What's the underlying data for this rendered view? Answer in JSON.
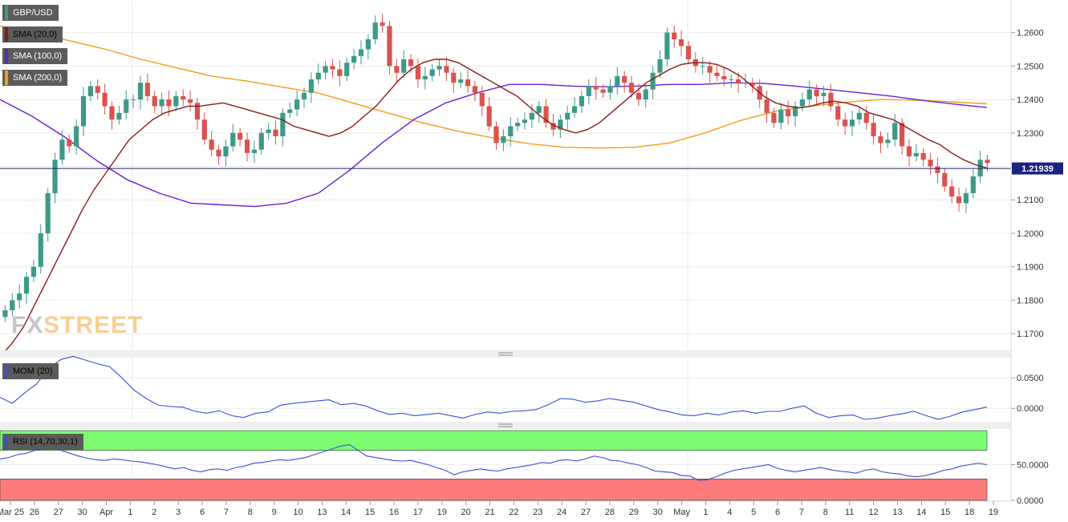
{
  "chart_data": [
    {
      "type": "candlestick",
      "symbol": "GBP/USD",
      "last_price": "1.21939",
      "ylim": [
        1.165,
        1.2695
      ],
      "y_ticks": [
        "1.2600",
        "1.2500",
        "1.2400",
        "1.2300",
        "1.2200",
        "1.2100",
        "1.2000",
        "1.1900",
        "1.1800",
        "1.1700"
      ],
      "indicators": [
        {
          "name": "SMA (20,0)",
          "color": "#8b1a1a"
        },
        {
          "name": "SMA (100,0)",
          "color": "#6a1fd0"
        },
        {
          "name": "SMA (200,0)",
          "color": "#f59a18"
        }
      ],
      "up_color": "#3d9a86",
      "down_color": "#d9534f",
      "x_ticks": [
        "Mar 25",
        "26",
        "27",
        "30",
        "Apr",
        "1",
        "2",
        "3",
        "6",
        "7",
        "8",
        "9",
        "10",
        "13",
        "14",
        "15",
        "16",
        "17",
        "19",
        "20",
        "21",
        "22",
        "23",
        "24",
        "27",
        "28",
        "29",
        "30",
        "May",
        "1",
        "4",
        "5",
        "6",
        "7",
        "8",
        "11",
        "12",
        "13",
        "14",
        "15",
        "18",
        "19"
      ],
      "close_path": [
        1.177,
        1.18,
        1.182,
        1.187,
        1.19,
        1.2,
        1.212,
        1.222,
        1.228,
        1.226,
        1.232,
        1.241,
        1.244,
        1.242,
        1.238,
        1.234,
        1.236,
        1.24,
        1.24,
        1.245,
        1.241,
        1.238,
        1.24,
        1.238,
        1.241,
        1.24,
        1.239,
        1.234,
        1.228,
        1.225,
        1.223,
        1.226,
        1.23,
        1.228,
        1.224,
        1.225,
        1.23,
        1.231,
        1.229,
        1.236,
        1.237,
        1.24,
        1.242,
        1.246,
        1.248,
        1.25,
        1.249,
        1.247,
        1.251,
        1.253,
        1.255,
        1.258,
        1.263,
        1.262,
        1.25,
        1.248,
        1.252,
        1.25,
        1.246,
        1.247,
        1.249,
        1.25,
        1.248,
        1.245,
        1.246,
        1.244,
        1.242,
        1.238,
        1.232,
        1.227,
        1.229,
        1.232,
        1.233,
        1.234,
        1.236,
        1.238,
        1.233,
        1.231,
        1.234,
        1.236,
        1.238,
        1.241,
        1.244,
        1.243,
        1.242,
        1.244,
        1.247,
        1.245,
        1.242,
        1.24,
        1.243,
        1.248,
        1.252,
        1.26,
        1.258,
        1.256,
        1.252,
        1.25,
        1.25,
        1.248,
        1.247,
        1.246,
        1.246,
        1.245,
        1.245,
        1.244,
        1.24,
        1.236,
        1.233,
        1.237,
        1.235,
        1.238,
        1.24,
        1.243,
        1.241,
        1.242,
        1.238,
        1.234,
        1.232,
        1.234,
        1.236,
        1.233,
        1.229,
        1.227,
        1.228,
        1.233,
        1.226,
        1.223,
        1.224,
        1.222,
        1.22,
        1.218,
        1.214,
        1.211,
        1.209,
        1.212,
        1.217,
        1.222,
        1.221
      ],
      "sma20": [
        1.163,
        1.167,
        1.172,
        1.179,
        1.186,
        1.193,
        1.2,
        1.207,
        1.213,
        1.218,
        1.223,
        1.228,
        1.231,
        1.234,
        1.236,
        1.237,
        1.238,
        1.238,
        1.2385,
        1.239,
        1.238,
        1.237,
        1.236,
        1.235,
        1.234,
        1.232,
        1.231,
        1.23,
        1.229,
        1.23,
        1.232,
        1.235,
        1.238,
        1.242,
        1.246,
        1.249,
        1.251,
        1.252,
        1.252,
        1.251,
        1.249,
        1.247,
        1.245,
        1.243,
        1.241,
        1.238,
        1.235,
        1.2325,
        1.231,
        1.23,
        1.231,
        1.233,
        1.236,
        1.239,
        1.242,
        1.245,
        1.247,
        1.249,
        1.2505,
        1.251,
        1.251,
        1.2505,
        1.249,
        1.247,
        1.244,
        1.241,
        1.239,
        1.238,
        1.2375,
        1.238,
        1.239,
        1.2395,
        1.239,
        1.238,
        1.236,
        1.235,
        1.234,
        1.232,
        1.23,
        1.228,
        1.2265,
        1.224,
        1.222,
        1.2205,
        1.2195
      ],
      "sma100": [
        1.24,
        1.235,
        1.229,
        1.222,
        1.216,
        1.212,
        1.209,
        1.2085,
        1.208,
        1.209,
        1.212,
        1.219,
        1.227,
        1.234,
        1.239,
        1.242,
        1.2445,
        1.2445,
        1.244,
        1.2438,
        1.244,
        1.2445,
        1.2445,
        1.245,
        1.2448,
        1.244,
        1.243,
        1.242,
        1.241,
        1.2397,
        1.2386,
        1.2376
      ],
      "sma200": [
        1.262,
        1.26,
        1.2575,
        1.255,
        1.252,
        1.2495,
        1.247,
        1.2455,
        1.2437,
        1.242,
        1.239,
        1.236,
        1.233,
        1.2305,
        1.2285,
        1.2268,
        1.2257,
        1.2255,
        1.2257,
        1.227,
        1.23,
        1.2337,
        1.2365,
        1.238,
        1.2392,
        1.24,
        1.2398,
        1.2393,
        1.2387
      ]
    },
    {
      "type": "line",
      "name": "MOM (20)",
      "color": "#3a4fd0",
      "ylim": [
        -0.022,
        0.083
      ],
      "y_ticks": [
        "0.0500",
        "0.0000"
      ],
      "values": [
        0.018,
        0.008,
        0.025,
        0.04,
        0.065,
        0.08,
        0.085,
        0.079,
        0.073,
        0.068,
        0.05,
        0.03,
        0.016,
        0.005,
        0.003,
        0.002,
        -0.005,
        -0.008,
        -0.004,
        -0.012,
        -0.015,
        -0.008,
        -0.006,
        0.005,
        0.008,
        0.01,
        0.012,
        0.014,
        0.006,
        0.008,
        0.004,
        -0.004,
        -0.01,
        -0.008,
        -0.012,
        -0.01,
        -0.008,
        -0.012,
        -0.016,
        -0.01,
        -0.006,
        -0.008,
        -0.005,
        -0.004,
        -0.002,
        0.006,
        0.016,
        0.015,
        0.01,
        0.012,
        0.016,
        0.013,
        0.01,
        0.004,
        -0.002,
        -0.006,
        -0.011,
        -0.012,
        -0.008,
        -0.011,
        -0.006,
        -0.004,
        -0.008,
        -0.005,
        -0.005,
        0.0,
        0.004,
        -0.008,
        -0.015,
        -0.012,
        -0.011,
        -0.018,
        -0.016,
        -0.012,
        -0.009,
        -0.005,
        -0.012,
        -0.018,
        -0.013,
        -0.006,
        -0.002,
        0.002
      ]
    },
    {
      "type": "line",
      "name": "RSI (14,70,30,1)",
      "color": "#3a4fd0",
      "ylim": [
        0,
        100
      ],
      "y_ticks": [
        "50.0000",
        "0.0000"
      ],
      "upper_band_color": "#7dfc72",
      "lower_band_color": "#fc7b7b",
      "values": [
        58,
        60,
        64,
        66,
        70,
        72,
        74,
        70,
        66,
        62,
        59,
        57,
        56,
        58,
        57,
        55,
        54,
        52,
        50,
        47,
        44,
        46,
        42,
        40,
        43,
        44,
        42,
        46,
        48,
        52,
        53,
        55,
        57,
        56,
        58,
        60,
        64,
        68,
        72,
        76,
        78,
        70,
        62,
        60,
        58,
        56,
        55,
        56,
        53,
        50,
        46,
        42,
        36,
        40,
        42,
        44,
        42,
        41,
        44,
        46,
        48,
        50,
        53,
        52,
        56,
        57,
        55,
        58,
        62,
        60,
        56,
        55,
        52,
        50,
        46,
        41,
        40,
        39,
        35,
        34,
        28,
        29,
        33,
        38,
        42,
        44,
        46,
        48,
        50,
        45,
        42,
        40,
        42,
        44,
        46,
        43,
        41,
        40,
        38,
        42,
        44,
        40,
        38,
        37,
        34,
        33,
        35,
        38,
        42,
        44,
        48,
        50,
        52,
        50
      ]
    }
  ]
}
